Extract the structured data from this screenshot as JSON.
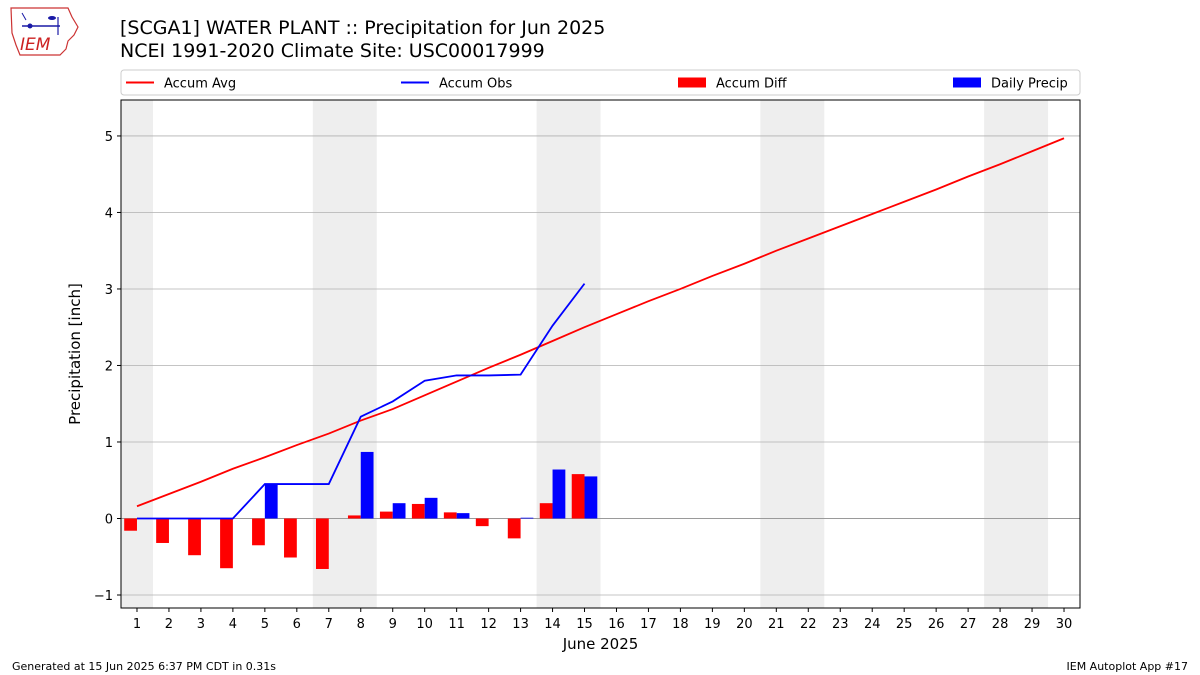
{
  "header": {
    "logo_text": "IEM",
    "title_line1": "[SCGA1] WATER PLANT :: Precipitation for Jun 2025",
    "title_line2": "NCEI 1991-2020 Climate Site: USC00017999"
  },
  "footer": {
    "left": "Generated at 15 Jun 2025 6:37 PM CDT in 0.31s",
    "right": "IEM Autoplot App #17"
  },
  "chart_data": {
    "type": "bar",
    "xlabel": "June 2025",
    "ylabel": "Precipitation [inch]",
    "ylim": [
      -1.17,
      5.47
    ],
    "xlim": [
      0.5,
      30.5
    ],
    "yticks": [
      -1,
      0,
      1,
      2,
      3,
      4,
      5
    ],
    "ytick_labels": [
      "−1",
      "0",
      "1",
      "2",
      "3",
      "4",
      "5"
    ],
    "x": [
      1,
      2,
      3,
      4,
      5,
      6,
      7,
      8,
      9,
      10,
      11,
      12,
      13,
      14,
      15,
      16,
      17,
      18,
      19,
      20,
      21,
      22,
      23,
      24,
      25,
      26,
      27,
      28,
      29,
      30
    ],
    "grid": "horizontal",
    "legend_position": "top",
    "weekend_shading": [
      [
        0.5,
        1.5
      ],
      [
        6.5,
        8.5
      ],
      [
        13.5,
        15.5
      ],
      [
        20.5,
        22.5
      ],
      [
        27.5,
        29.5
      ]
    ],
    "legend": [
      {
        "label": "Accum Avg",
        "kind": "line",
        "color": "#ff0000"
      },
      {
        "label": "Accum Obs",
        "kind": "line",
        "color": "#0000ff"
      },
      {
        "label": "Accum Diff",
        "kind": "bar",
        "color": "#ff0000"
      },
      {
        "label": "Daily Precip",
        "kind": "bar",
        "color": "#0000ff"
      }
    ],
    "series": [
      {
        "name": "Accum Avg",
        "kind": "line",
        "color": "#ff0000",
        "x": [
          1,
          2,
          3,
          4,
          5,
          6,
          7,
          8,
          9,
          10,
          11,
          12,
          13,
          14,
          15,
          16,
          17,
          18,
          19,
          20,
          21,
          22,
          23,
          24,
          25,
          26,
          27,
          28,
          29,
          30
        ],
        "values": [
          0.16,
          0.32,
          0.48,
          0.65,
          0.8,
          0.96,
          1.11,
          1.28,
          1.43,
          1.61,
          1.79,
          1.97,
          2.14,
          2.32,
          2.5,
          2.67,
          2.84,
          3.0,
          3.17,
          3.33,
          3.5,
          3.66,
          3.82,
          3.98,
          4.14,
          4.3,
          4.47,
          4.63,
          4.8,
          4.97
        ]
      },
      {
        "name": "Accum Obs",
        "kind": "line",
        "color": "#0000ff",
        "x": [
          1,
          2,
          3,
          4,
          5,
          6,
          7,
          8,
          9,
          10,
          11,
          12,
          13,
          14,
          15
        ],
        "values": [
          0.0,
          0.0,
          0.0,
          0.0,
          0.45,
          0.45,
          0.45,
          1.33,
          1.53,
          1.8,
          1.87,
          1.87,
          1.88,
          2.52,
          3.07
        ]
      },
      {
        "name": "Accum Diff",
        "kind": "bar",
        "color": "#ff0000",
        "x": [
          1,
          2,
          3,
          4,
          5,
          6,
          7,
          8,
          9,
          10,
          11,
          12,
          13,
          14,
          15
        ],
        "values": [
          -0.16,
          -0.32,
          -0.48,
          -0.65,
          -0.35,
          -0.51,
          -0.66,
          0.04,
          0.09,
          0.19,
          0.08,
          -0.1,
          -0.26,
          0.2,
          0.58
        ]
      },
      {
        "name": "Daily Precip",
        "kind": "bar",
        "color": "#0000ff",
        "x": [
          1,
          2,
          3,
          4,
          5,
          6,
          7,
          8,
          9,
          10,
          11,
          12,
          13,
          14,
          15
        ],
        "values": [
          0.0,
          0.0,
          0.0,
          0.0,
          0.45,
          0.0,
          0.0,
          0.87,
          0.2,
          0.27,
          0.07,
          0.0,
          0.01,
          0.64,
          0.55
        ]
      }
    ]
  }
}
